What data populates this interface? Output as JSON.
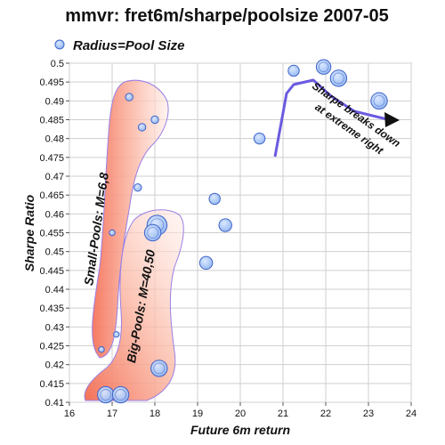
{
  "chart_data": {
    "type": "scatter",
    "title": "mmvr: fret6m/sharpe/poolsize  2007-05",
    "xlabel": "Future 6m return",
    "ylabel": "Sharpe Ratio",
    "xlim": [
      16,
      24
    ],
    "ylim": [
      0.41,
      0.5
    ],
    "x_ticks": [
      "16",
      "17",
      "18",
      "19",
      "20",
      "21",
      "22",
      "23",
      "24"
    ],
    "y_ticks": [
      "0.41",
      "0.415",
      "0.42",
      "0.425",
      "0.43",
      "0.435",
      "0.44",
      "0.445",
      "0.45",
      "0.455",
      "0.46",
      "0.465",
      "0.47",
      "0.475",
      "0.48",
      "0.485",
      "0.49",
      "0.495",
      "0.5"
    ],
    "grid": true,
    "legend": {
      "label": "Radius=Pool Size",
      "position": "top-left"
    },
    "colors": {
      "point_fill": "#a8c8ff",
      "point_stroke": "#3d63c8",
      "region_outline": "#9a7fe6",
      "trend_line": "#6a5ae0",
      "arrow": "#111111"
    },
    "series": [
      {
        "name": "Radius=Pool Size",
        "points": [
          {
            "x": 16.75,
            "y": 0.424,
            "size": 2
          },
          {
            "x": 17.1,
            "y": 0.428,
            "size": 2
          },
          {
            "x": 17.0,
            "y": 0.455,
            "size": 2
          },
          {
            "x": 17.6,
            "y": 0.467,
            "size": 3
          },
          {
            "x": 17.7,
            "y": 0.483,
            "size": 3
          },
          {
            "x": 18.0,
            "y": 0.485,
            "size": 3
          },
          {
            "x": 17.4,
            "y": 0.491,
            "size": 3
          },
          {
            "x": 16.85,
            "y": 0.412,
            "size": 8
          },
          {
            "x": 17.2,
            "y": 0.412,
            "size": 8
          },
          {
            "x": 18.1,
            "y": 0.419,
            "size": 8
          },
          {
            "x": 18.05,
            "y": 0.457,
            "size": 10
          },
          {
            "x": 17.95,
            "y": 0.455,
            "size": 8
          },
          {
            "x": 19.2,
            "y": 0.447,
            "size": 6
          },
          {
            "x": 19.65,
            "y": 0.457,
            "size": 6
          },
          {
            "x": 19.4,
            "y": 0.464,
            "size": 5
          },
          {
            "x": 20.45,
            "y": 0.48,
            "size": 5
          },
          {
            "x": 21.25,
            "y": 0.498,
            "size": 5
          },
          {
            "x": 21.95,
            "y": 0.499,
            "size": 7
          },
          {
            "x": 22.3,
            "y": 0.496,
            "size": 8
          },
          {
            "x": 23.25,
            "y": 0.49,
            "size": 8
          }
        ]
      }
    ],
    "annotations": {
      "small_pools": "Small-Pools: M=6,8",
      "big_pools": "Big-Pools: M=40,50",
      "sharpe_line1": "Sharpe breaks down",
      "sharpe_line2": "at extreme right"
    }
  }
}
